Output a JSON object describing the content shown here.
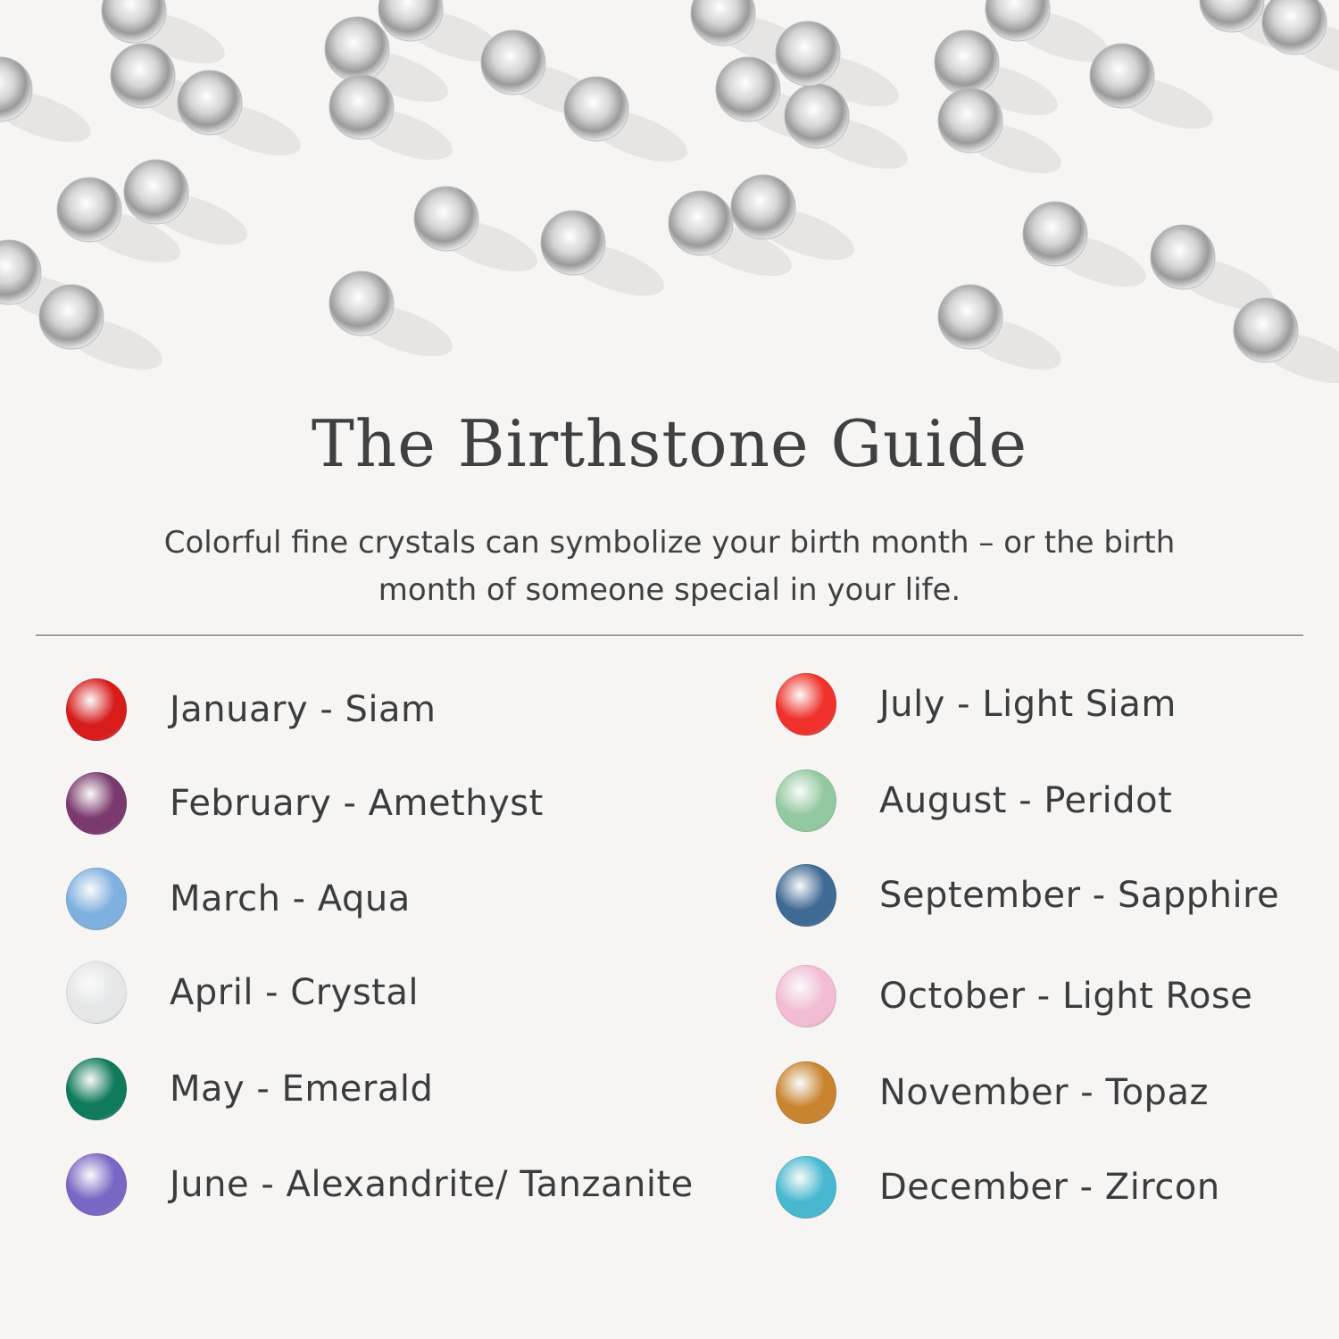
{
  "header": {
    "title": "The Birthstone Guide",
    "subtitle_line1": "Colorful fine crystals can symbolize your birth month – or the birth",
    "subtitle_line2": "month of someone special in your life."
  },
  "left_column": [
    {
      "label": "January - Siam",
      "color": "#d81c1c"
    },
    {
      "label": "February - Amethyst",
      "color": "#7a3a6e"
    },
    {
      "label": "March - Aqua",
      "color": "#7fb0e0"
    },
    {
      "label": "April - Crystal",
      "color": "#e4e6e8"
    },
    {
      "label": "May - Emerald",
      "color": "#0f7a5c"
    },
    {
      "label": "June - Alexandrite/ Tanzanite",
      "color": "#7a66c4"
    }
  ],
  "right_column": [
    {
      "label": "July - Light Siam",
      "color": "#f0322c"
    },
    {
      "label": "August - Peridot",
      "color": "#93c9a0"
    },
    {
      "label": "September - Sapphire",
      "color": "#3f6a94"
    },
    {
      "label": "October - Light Rose",
      "color": "#f2bcd4"
    },
    {
      "label": "November - Topaz",
      "color": "#c98430"
    },
    {
      "label": "December - Zircon",
      "color": "#48b8d0"
    }
  ]
}
